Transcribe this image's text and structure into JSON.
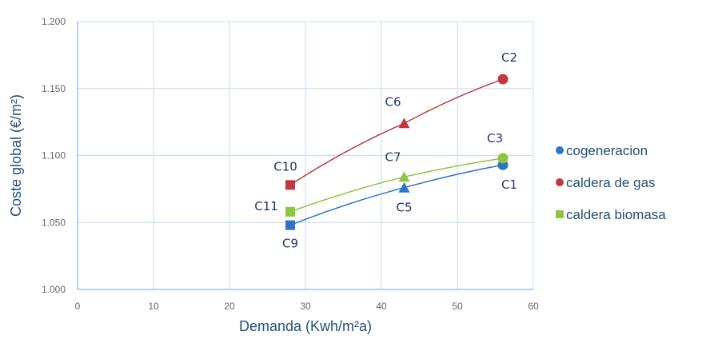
{
  "chart_data": {
    "type": "line",
    "xlabel": "Demanda (Kwh/m²a)",
    "ylabel": "Coste global (€/m²)",
    "xlim": [
      0,
      60
    ],
    "ylim": [
      1000,
      1200
    ],
    "x_ticks": [
      "0",
      "10",
      "20",
      "30",
      "40",
      "50",
      "60"
    ],
    "y_ticks": [
      "1.000",
      "1.050",
      "1.100",
      "1.150",
      "1.200"
    ],
    "grid": true,
    "legend_position": "right",
    "series": [
      {
        "name": "cogeneracion",
        "color": "#2e75c7",
        "x": [
          28,
          43,
          56
        ],
        "y": [
          1048,
          1076,
          1093
        ],
        "markers": [
          "square",
          "triangle",
          "circle"
        ],
        "point_labels": [
          "C9",
          "C5",
          "C1"
        ]
      },
      {
        "name": "caldera de gas",
        "color": "#c0393b",
        "x": [
          28,
          43,
          56
        ],
        "y": [
          1078,
          1124,
          1157
        ],
        "markers": [
          "square",
          "triangle",
          "circle"
        ],
        "point_labels": [
          "C10",
          "C6",
          "C2"
        ]
      },
      {
        "name": "caldera biomasa",
        "color": "#8dc63f",
        "x": [
          28,
          43,
          56
        ],
        "y": [
          1058,
          1084,
          1098
        ],
        "markers": [
          "square",
          "triangle",
          "circle"
        ],
        "point_labels": [
          "C11",
          "C7",
          "C3"
        ]
      }
    ]
  }
}
